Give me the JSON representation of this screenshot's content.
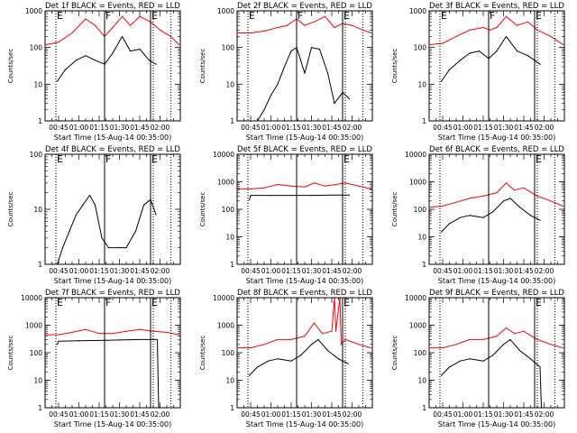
{
  "page": {
    "x_axis_title": "Start Time (15-Aug-14 00:35:00)",
    "y_axis_title": "Counts/sec",
    "colors": {
      "events": "#000000",
      "lld": "#ff0000",
      "background": "#ffffff"
    }
  },
  "chart_data": [
    {
      "type": "line",
      "title": "Det 1f BLACK = Events, RED = LLD",
      "xlabel": "Start Time (15-Aug-14 00:35:00)",
      "ylabel": "Counts/sec",
      "yscale": "log",
      "ylim": [
        1,
        1000
      ],
      "xlim": [
        "00:35",
        "02:15"
      ],
      "yticks": [
        "1",
        "10",
        "100",
        "1000"
      ],
      "xticks": [
        "00:45",
        "01:00",
        "01:15",
        "01:30",
        "01:45",
        "02:00"
      ],
      "markers": [
        {
          "time": "00:43",
          "style": "dotted",
          "label": "E"
        },
        {
          "time": "01:19",
          "style": "solid",
          "label": "F"
        },
        {
          "time": "01:53",
          "style": "solid",
          "label": "E"
        },
        {
          "time": "01:55",
          "style": "dotted",
          "label": ""
        },
        {
          "time": "02:08",
          "style": "dotted",
          "label": ""
        }
      ],
      "series": [
        {
          "color": "#ff0000",
          "x": [
            "00:36",
            "00:45",
            "00:55",
            "01:05",
            "01:12",
            "01:19",
            "01:25",
            "01:32",
            "01:38",
            "01:45",
            "01:53",
            "02:00",
            "02:08",
            "02:14"
          ],
          "values": [
            120,
            140,
            250,
            600,
            400,
            200,
            350,
            700,
            400,
            700,
            500,
            300,
            200,
            120
          ]
        },
        {
          "color": "#000000",
          "x": [
            "00:44",
            "00:50",
            "00:58",
            "01:05",
            "01:12",
            "01:19",
            "01:25",
            "01:32",
            "01:38",
            "01:45",
            "01:52",
            "01:57"
          ],
          "values": [
            12,
            25,
            45,
            60,
            45,
            35,
            70,
            200,
            80,
            90,
            45,
            35
          ]
        }
      ]
    },
    {
      "type": "line",
      "title": "Det 2f BLACK = Events, RED = LLD",
      "xlabel": "Start Time (15-Aug-14 00:35:00)",
      "ylabel": "Counts/sec",
      "yscale": "log",
      "ylim": [
        1,
        1000
      ],
      "xlim": [
        "00:35",
        "02:15"
      ],
      "yticks": [
        "1",
        "10",
        "100",
        "1000"
      ],
      "xticks": [
        "00:45",
        "01:00",
        "01:15",
        "01:30",
        "01:45",
        "02:00"
      ],
      "markers": [
        {
          "time": "00:43",
          "style": "dotted",
          "label": "E"
        },
        {
          "time": "01:19",
          "style": "solid",
          "label": "F"
        },
        {
          "time": "01:53",
          "style": "solid",
          "label": "E"
        },
        {
          "time": "01:55",
          "style": "dotted",
          "label": ""
        },
        {
          "time": "02:08",
          "style": "dotted",
          "label": ""
        }
      ],
      "series": [
        {
          "color": "#ff0000",
          "x": [
            "00:36",
            "00:45",
            "00:55",
            "01:05",
            "01:12",
            "01:19",
            "01:25",
            "01:32",
            "01:40",
            "01:47",
            "01:53",
            "02:00",
            "02:08",
            "02:14"
          ],
          "values": [
            250,
            250,
            280,
            350,
            400,
            600,
            400,
            500,
            700,
            350,
            450,
            400,
            300,
            250
          ]
        },
        {
          "color": "#000000",
          "x": [
            "00:44",
            "00:50",
            "00:55",
            "01:00",
            "01:05",
            "01:10",
            "01:15",
            "01:19",
            "01:25",
            "01:30",
            "01:36",
            "01:42",
            "01:47",
            "01:53",
            "01:58"
          ],
          "values": [
            1,
            1,
            2,
            5,
            10,
            30,
            80,
            100,
            20,
            100,
            90,
            20,
            3,
            6,
            4
          ]
        }
      ]
    },
    {
      "type": "line",
      "title": "Det 3f BLACK = Events, RED = LLD",
      "xlabel": "Start Time (15-Aug-14 00:35:00)",
      "ylabel": "Counts/sec",
      "yscale": "log",
      "ylim": [
        1,
        1000
      ],
      "xlim": [
        "00:35",
        "02:15"
      ],
      "yticks": [
        "1",
        "10",
        "100",
        "1000"
      ],
      "xticks": [
        "00:45",
        "01:00",
        "01:15",
        "01:30",
        "01:45",
        "02:00"
      ],
      "markers": [
        {
          "time": "00:43",
          "style": "dotted",
          "label": "E"
        },
        {
          "time": "01:19",
          "style": "solid",
          "label": "F"
        },
        {
          "time": "01:53",
          "style": "solid",
          "label": "E"
        },
        {
          "time": "01:55",
          "style": "dotted",
          "label": ""
        },
        {
          "time": "02:08",
          "style": "dotted",
          "label": ""
        }
      ],
      "series": [
        {
          "color": "#ff0000",
          "x": [
            "00:36",
            "00:45",
            "00:55",
            "01:05",
            "01:15",
            "01:20",
            "01:25",
            "01:32",
            "01:40",
            "01:48",
            "01:55",
            "02:05",
            "02:14"
          ],
          "values": [
            120,
            130,
            200,
            300,
            350,
            300,
            350,
            700,
            400,
            500,
            300,
            200,
            120
          ]
        },
        {
          "color": "#000000",
          "x": [
            "00:44",
            "00:50",
            "00:58",
            "01:05",
            "01:12",
            "01:19",
            "01:25",
            "01:32",
            "01:40",
            "01:48",
            "01:57"
          ],
          "values": [
            12,
            25,
            45,
            70,
            80,
            50,
            80,
            200,
            80,
            60,
            35
          ]
        }
      ]
    },
    {
      "type": "line",
      "title": "Det 4f BLACK = Events, RED = LLD",
      "xlabel": "Start Time (15-Aug-14 00:35:00)",
      "ylabel": "Counts/sec",
      "yscale": "log",
      "ylim": [
        1,
        100
      ],
      "xlim": [
        "00:35",
        "02:15"
      ],
      "yticks": [
        "1",
        "10",
        "100"
      ],
      "xticks": [
        "00:45",
        "01:00",
        "01:15",
        "01:30",
        "01:45",
        "02:00"
      ],
      "markers": [
        {
          "time": "00:43",
          "style": "dotted",
          "label": "E"
        },
        {
          "time": "01:19",
          "style": "solid",
          "label": "F"
        },
        {
          "time": "01:53",
          "style": "solid",
          "label": "E"
        },
        {
          "time": "01:55",
          "style": "dotted",
          "label": ""
        },
        {
          "time": "02:08",
          "style": "dotted",
          "label": ""
        }
      ],
      "series": [
        {
          "color": "#000000",
          "x": [
            "00:44",
            "00:48",
            "00:53",
            "00:58",
            "01:03",
            "01:08",
            "01:12",
            "01:17",
            "01:22",
            "01:28",
            "01:35",
            "01:42",
            "01:48",
            "01:53",
            "01:57"
          ],
          "values": [
            1,
            2,
            4,
            8,
            12,
            18,
            12,
            3,
            2,
            2,
            2,
            4,
            12,
            15,
            8
          ]
        }
      ]
    },
    {
      "type": "line",
      "title": "Det 5f BLACK = Events, RED = LLD",
      "xlabel": "Start Time (15-Aug-14 00:35:00)",
      "ylabel": "Counts/sec",
      "yscale": "log",
      "ylim": [
        1,
        10000
      ],
      "xlim": [
        "00:35",
        "02:15"
      ],
      "yticks": [
        "1",
        "10",
        "100",
        "1000",
        "10000"
      ],
      "xticks": [
        "00:45",
        "01:00",
        "01:15",
        "01:30",
        "01:45",
        "02:00"
      ],
      "markers": [
        {
          "time": "00:43",
          "style": "dotted",
          "label": ""
        },
        {
          "time": "01:19",
          "style": "solid",
          "label": ""
        },
        {
          "time": "01:53",
          "style": "solid",
          "label": "E"
        },
        {
          "time": "01:55",
          "style": "dotted",
          "label": ""
        },
        {
          "time": "02:08",
          "style": "dotted",
          "label": ""
        }
      ],
      "series": [
        {
          "color": "#ff0000",
          "x": [
            "00:36",
            "00:45",
            "00:55",
            "01:05",
            "01:15",
            "01:25",
            "01:32",
            "01:40",
            "01:48",
            "01:55",
            "02:05",
            "02:14"
          ],
          "values": [
            550,
            550,
            600,
            800,
            700,
            650,
            900,
            700,
            800,
            900,
            700,
            550
          ]
        },
        {
          "color": "#000000",
          "x": [
            "00:44",
            "00:45",
            "01:00",
            "01:15",
            "01:30",
            "01:45",
            "01:58"
          ],
          "values": [
            220,
            320,
            320,
            320,
            320,
            330,
            330
          ]
        }
      ]
    },
    {
      "type": "line",
      "title": "Det 6f BLACK = Events, RED = LLD",
      "xlabel": "Start Time (15-Aug-14 00:35:00)",
      "ylabel": "Counts/sec",
      "yscale": "log",
      "ylim": [
        1,
        10000
      ],
      "xlim": [
        "00:35",
        "02:15"
      ],
      "yticks": [
        "1",
        "10",
        "100",
        "1000",
        "10000"
      ],
      "xticks": [
        "00:45",
        "01:00",
        "01:15",
        "01:30",
        "01:45",
        "02:00"
      ],
      "markers": [
        {
          "time": "00:43",
          "style": "dotted",
          "label": ""
        },
        {
          "time": "01:19",
          "style": "solid",
          "label": ""
        },
        {
          "time": "01:53",
          "style": "solid",
          "label": "E"
        },
        {
          "time": "01:55",
          "style": "dotted",
          "label": ""
        },
        {
          "time": "02:08",
          "style": "dotted",
          "label": ""
        }
      ],
      "series": [
        {
          "color": "#ff0000",
          "x": [
            "00:36",
            "00:45",
            "00:55",
            "01:05",
            "01:15",
            "01:25",
            "01:32",
            "01:38",
            "01:45",
            "01:55",
            "02:05",
            "02:14"
          ],
          "values": [
            120,
            130,
            180,
            250,
            300,
            400,
            900,
            500,
            600,
            300,
            200,
            130
          ]
        },
        {
          "color": "#000000",
          "x": [
            "00:44",
            "00:50",
            "00:58",
            "01:05",
            "01:15",
            "01:22",
            "01:30",
            "01:35",
            "01:42",
            "01:50",
            "01:57"
          ],
          "values": [
            15,
            30,
            50,
            60,
            50,
            80,
            200,
            250,
            120,
            60,
            40
          ]
        }
      ]
    },
    {
      "type": "line",
      "title": "Det 7f BLACK = Events, RED = LLD",
      "xlabel": "Start Time (15-Aug-14 00:35:00)",
      "ylabel": "Counts/sec",
      "yscale": "log",
      "ylim": [
        1,
        10000
      ],
      "xlim": [
        "00:35",
        "02:15"
      ],
      "yticks": [
        "1",
        "10",
        "100",
        "1000",
        "10000"
      ],
      "xticks": [
        "00:45",
        "01:00",
        "01:15",
        "01:30",
        "01:45",
        "02:00"
      ],
      "markers": [
        {
          "time": "00:43",
          "style": "dotted",
          "label": "E"
        },
        {
          "time": "01:19",
          "style": "solid",
          "label": "F"
        },
        {
          "time": "01:53",
          "style": "solid",
          "label": "E"
        },
        {
          "time": "01:55",
          "style": "dotted",
          "label": ""
        },
        {
          "time": "02:08",
          "style": "dotted",
          "label": ""
        }
      ],
      "series": [
        {
          "color": "#ff0000",
          "x": [
            "00:36",
            "00:45",
            "00:55",
            "01:05",
            "01:15",
            "01:25",
            "01:35",
            "01:45",
            "01:55",
            "02:05",
            "02:14"
          ],
          "values": [
            450,
            450,
            550,
            700,
            500,
            500,
            600,
            700,
            600,
            550,
            450
          ]
        },
        {
          "color": "#000000",
          "x": [
            "00:44",
            "00:45",
            "01:00",
            "01:15",
            "01:30",
            "01:45",
            "01:58",
            "01:59",
            "02:00"
          ],
          "values": [
            200,
            260,
            270,
            280,
            290,
            300,
            300,
            1,
            1
          ]
        }
      ]
    },
    {
      "type": "line",
      "title": "Det 8f BLACK = Events, RED = LLD",
      "xlabel": "Start Time (15-Aug-14 00:35:00)",
      "ylabel": "Counts/sec",
      "yscale": "log",
      "ylim": [
        1,
        10000
      ],
      "xlim": [
        "00:35",
        "02:15"
      ],
      "yticks": [
        "1",
        "10",
        "100",
        "1000",
        "10000"
      ],
      "xticks": [
        "00:45",
        "01:00",
        "01:15",
        "01:30",
        "01:45",
        "02:00"
      ],
      "markers": [
        {
          "time": "00:43",
          "style": "dotted",
          "label": ""
        },
        {
          "time": "01:19",
          "style": "solid",
          "label": ""
        },
        {
          "time": "01:53",
          "style": "solid",
          "label": "E"
        },
        {
          "time": "01:55",
          "style": "dotted",
          "label": ""
        },
        {
          "time": "02:08",
          "style": "dotted",
          "label": ""
        }
      ],
      "series": [
        {
          "color": "#ff0000",
          "x": [
            "00:36",
            "00:45",
            "00:55",
            "01:05",
            "01:15",
            "01:25",
            "01:32",
            "01:38",
            "01:45",
            "01:47",
            "01:48",
            "01:51",
            "01:52",
            "01:55",
            "02:05",
            "02:14"
          ],
          "values": [
            150,
            150,
            200,
            300,
            300,
            400,
            1200,
            500,
            600,
            10000,
            600,
            10000,
            200,
            300,
            200,
            150
          ]
        },
        {
          "color": "#000000",
          "x": [
            "00:44",
            "00:50",
            "00:58",
            "01:05",
            "01:15",
            "01:22",
            "01:30",
            "01:35",
            "01:42",
            "01:50",
            "01:57"
          ],
          "values": [
            15,
            30,
            50,
            60,
            50,
            80,
            200,
            300,
            120,
            60,
            40
          ]
        }
      ]
    },
    {
      "type": "line",
      "title": "Det 9f BLACK = Events, RED = LLD",
      "xlabel": "Start Time (15-Aug-14 00:35:00)",
      "ylabel": "Counts/sec",
      "yscale": "log",
      "ylim": [
        1,
        10000
      ],
      "xlim": [
        "00:35",
        "02:15"
      ],
      "yticks": [
        "1",
        "10",
        "100",
        "1000",
        "10000"
      ],
      "xticks": [
        "00:45",
        "01:00",
        "01:15",
        "01:30",
        "01:45",
        "02:00"
      ],
      "markers": [
        {
          "time": "00:43",
          "style": "dotted",
          "label": ""
        },
        {
          "time": "01:19",
          "style": "solid",
          "label": ""
        },
        {
          "time": "01:53",
          "style": "solid",
          "label": "E"
        },
        {
          "time": "01:55",
          "style": "dotted",
          "label": ""
        },
        {
          "time": "02:08",
          "style": "dotted",
          "label": ""
        }
      ],
      "series": [
        {
          "color": "#ff0000",
          "x": [
            "00:36",
            "00:45",
            "00:55",
            "01:05",
            "01:15",
            "01:25",
            "01:32",
            "01:38",
            "01:45",
            "01:55",
            "02:05",
            "02:14"
          ],
          "values": [
            150,
            150,
            200,
            300,
            300,
            400,
            800,
            500,
            600,
            300,
            200,
            150
          ]
        },
        {
          "color": "#000000",
          "x": [
            "00:44",
            "00:50",
            "00:58",
            "01:05",
            "01:15",
            "01:22",
            "01:30",
            "01:35",
            "01:42",
            "01:50",
            "01:57",
            "01:58"
          ],
          "values": [
            15,
            30,
            50,
            60,
            50,
            80,
            200,
            300,
            120,
            60,
            30,
            1
          ]
        }
      ]
    }
  ]
}
